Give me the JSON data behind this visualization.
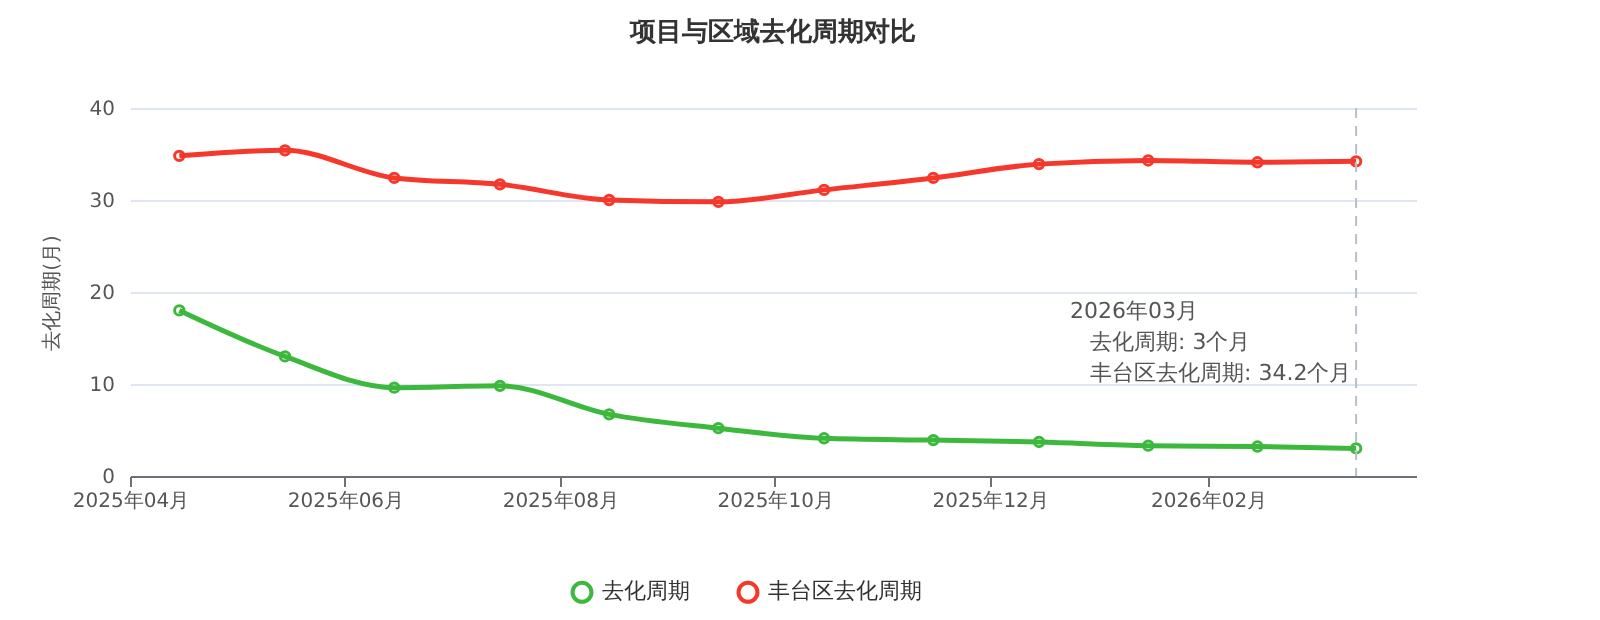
{
  "chart_data": {
    "type": "line",
    "title": "项目与区域去化周期对比",
    "ylabel": "去化周期(月)",
    "x": [
      "2025-04-15",
      "2025-05-15",
      "2025-06-15",
      "2025-07-15",
      "2025-08-15",
      "2025-09-15",
      "2025-10-15",
      "2025-11-15",
      "2025-12-15",
      "2026-01-15",
      "2026-02-15",
      "2026-03-15"
    ],
    "series": [
      {
        "name": "去化周期",
        "color": "#3cb93c",
        "values": [
          18.0,
          13.0,
          9.6,
          9.8,
          6.7,
          5.2,
          4.1,
          3.9,
          3.7,
          3.3,
          3.2,
          3.0
        ]
      },
      {
        "name": "丰台区去化周期",
        "color": "#f5372c",
        "values": [
          34.8,
          35.4,
          32.4,
          31.7,
          30.0,
          29.8,
          31.1,
          32.4,
          33.9,
          34.3,
          34.1,
          34.2
        ]
      }
    ],
    "xlim": [
      "2025-04",
      "2026-04"
    ],
    "xticks": [
      {
        "value": "2025-04",
        "label": "2025年04月"
      },
      {
        "value": "2025-06",
        "label": "2025年06月"
      },
      {
        "value": "2025-08",
        "label": "2025年08月"
      },
      {
        "value": "2025-10",
        "label": "2025年10月"
      },
      {
        "value": "2025-12",
        "label": "2025年12月"
      },
      {
        "value": "2026-02",
        "label": "2026年02月"
      }
    ],
    "ylim": [
      0,
      40
    ],
    "yticks": [
      0,
      10,
      20,
      30,
      40
    ],
    "grid": "y",
    "legend": "bottom",
    "marker": "circle",
    "line_style": "solid",
    "ref_lines": [
      {
        "axis": "x",
        "value": "2026-03-15",
        "color": "#b8bfcc",
        "line_style": "dashed"
      }
    ],
    "annotations": [
      "2026年03月",
      "去化周期: 3个月",
      "丰台区去化周期: 34.2个月"
    ]
  }
}
